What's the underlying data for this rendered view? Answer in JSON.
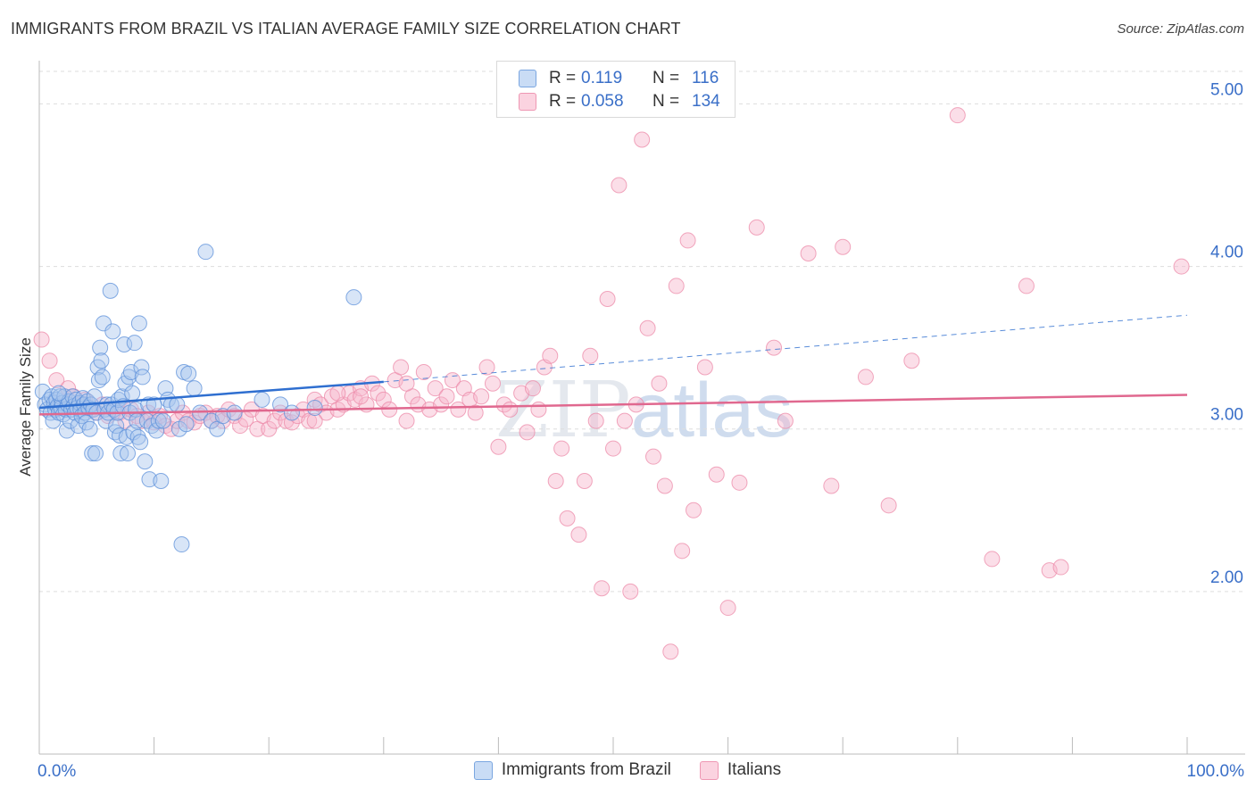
{
  "title": "IMMIGRANTS FROM BRAZIL VS ITALIAN AVERAGE FAMILY SIZE CORRELATION CHART",
  "source": "Source: ZipAtlas.com",
  "watermark": {
    "zip": "ZIP",
    "atlas": "atlas"
  },
  "legend": {
    "rows": [
      {
        "r_label": "R =",
        "r_value": "0.119",
        "n_label": "N =",
        "n_value": "116",
        "color": "#a8c6ee"
      },
      {
        "r_label": "R =",
        "r_value": "0.058",
        "n_label": "N =",
        "n_value": "134",
        "color": "#f7b6cb"
      }
    ]
  },
  "bottom_legend": [
    {
      "label": "Immigrants from Brazil",
      "color": "#a8c6ee"
    },
    {
      "label": "Italians",
      "color": "#f7b6cb"
    }
  ],
  "chart_data": {
    "type": "scatter",
    "title": "IMMIGRANTS FROM BRAZIL VS ITALIAN AVERAGE FAMILY SIZE CORRELATION CHART",
    "xlabel": "",
    "ylabel": "Average Family Size",
    "xlim": [
      0,
      100
    ],
    "ylim": [
      1.0,
      5.2
    ],
    "x_tick_labels": [
      "0.0%",
      "100.0%"
    ],
    "y_ticks": [
      2.0,
      3.0,
      4.0,
      5.0
    ],
    "y_tick_labels": [
      "2.00",
      "3.00",
      "4.00",
      "5.00"
    ],
    "grid": "horizontal dashed",
    "legend_position": "top-center",
    "series": [
      {
        "name": "Immigrants from Brazil",
        "color": "#5b8fd9",
        "fill": "#a8c6ee",
        "trend": {
          "x": [
            0,
            30
          ],
          "y": [
            3.13,
            3.29
          ],
          "dashed_to": [
            100,
            3.7
          ],
          "color": "#2f6fd0"
        },
        "points": [
          [
            0.3,
            3.23
          ],
          [
            0.5,
            3.15
          ],
          [
            0.7,
            3.12
          ],
          [
            0.9,
            3.18
          ],
          [
            1.0,
            3.1
          ],
          [
            1.1,
            3.2
          ],
          [
            1.2,
            3.05
          ],
          [
            1.3,
            3.16
          ],
          [
            1.4,
            3.12
          ],
          [
            1.5,
            3.18
          ],
          [
            1.6,
            3.14
          ],
          [
            1.7,
            3.1
          ],
          [
            1.8,
            3.2
          ],
          [
            1.9,
            3.13
          ],
          [
            2.0,
            3.16
          ],
          [
            2.1,
            3.09
          ],
          [
            2.2,
            3.2
          ],
          [
            2.3,
            3.12
          ],
          [
            2.4,
            2.99
          ],
          [
            2.5,
            3.15
          ],
          [
            2.6,
            3.17
          ],
          [
            2.7,
            3.05
          ],
          [
            2.8,
            3.12
          ],
          [
            2.9,
            3.2
          ],
          [
            3.0,
            3.14
          ],
          [
            3.1,
            3.1
          ],
          [
            3.2,
            3.18
          ],
          [
            3.3,
            3.13
          ],
          [
            3.4,
            3.02
          ],
          [
            3.5,
            3.16
          ],
          [
            3.6,
            3.12
          ],
          [
            3.7,
            3.08
          ],
          [
            3.8,
            3.19
          ],
          [
            3.9,
            3.15
          ],
          [
            4.0,
            3.1
          ],
          [
            4.1,
            3.04
          ],
          [
            4.2,
            3.17
          ],
          [
            4.3,
            3.13
          ],
          [
            4.4,
            3.0
          ],
          [
            4.5,
            3.15
          ],
          [
            4.6,
            2.85
          ],
          [
            4.7,
            3.12
          ],
          [
            4.8,
            3.2
          ],
          [
            4.9,
            2.85
          ],
          [
            5.0,
            3.1
          ],
          [
            5.1,
            3.38
          ],
          [
            5.2,
            3.3
          ],
          [
            5.3,
            3.5
          ],
          [
            5.4,
            3.42
          ],
          [
            5.5,
            3.32
          ],
          [
            5.6,
            3.65
          ],
          [
            5.7,
            3.12
          ],
          [
            5.8,
            3.05
          ],
          [
            5.9,
            3.15
          ],
          [
            6.0,
            3.1
          ],
          [
            6.2,
            3.85
          ],
          [
            6.3,
            3.15
          ],
          [
            6.4,
            3.6
          ],
          [
            6.5,
            3.12
          ],
          [
            6.6,
            2.98
          ],
          [
            6.7,
            3.02
          ],
          [
            6.8,
            3.1
          ],
          [
            6.9,
            3.18
          ],
          [
            7.0,
            2.96
          ],
          [
            7.1,
            2.85
          ],
          [
            7.2,
            3.2
          ],
          [
            7.3,
            3.14
          ],
          [
            7.4,
            3.52
          ],
          [
            7.5,
            3.28
          ],
          [
            7.6,
            2.95
          ],
          [
            7.7,
            2.85
          ],
          [
            7.8,
            3.32
          ],
          [
            7.9,
            3.1
          ],
          [
            8.0,
            3.35
          ],
          [
            8.1,
            3.22
          ],
          [
            8.2,
            2.98
          ],
          [
            8.3,
            3.53
          ],
          [
            8.4,
            3.12
          ],
          [
            8.5,
            3.05
          ],
          [
            8.6,
            2.95
          ],
          [
            8.7,
            3.65
          ],
          [
            8.8,
            2.92
          ],
          [
            8.9,
            3.38
          ],
          [
            9.0,
            3.32
          ],
          [
            9.2,
            2.8
          ],
          [
            9.4,
            3.05
          ],
          [
            9.5,
            3.15
          ],
          [
            9.6,
            2.69
          ],
          [
            9.8,
            3.02
          ],
          [
            10.0,
            3.15
          ],
          [
            10.2,
            2.99
          ],
          [
            10.4,
            3.05
          ],
          [
            10.6,
            2.68
          ],
          [
            10.8,
            3.05
          ],
          [
            11.0,
            3.25
          ],
          [
            11.2,
            3.18
          ],
          [
            11.5,
            3.15
          ],
          [
            12.0,
            3.15
          ],
          [
            12.2,
            3.0
          ],
          [
            12.4,
            2.29
          ],
          [
            12.6,
            3.35
          ],
          [
            12.8,
            3.03
          ],
          [
            13.0,
            3.34
          ],
          [
            13.5,
            3.25
          ],
          [
            14.0,
            3.1
          ],
          [
            14.5,
            4.09
          ],
          [
            15.0,
            3.05
          ],
          [
            15.5,
            3.0
          ],
          [
            16.0,
            3.08
          ],
          [
            17.0,
            3.1
          ],
          [
            19.4,
            3.18
          ],
          [
            21.0,
            3.15
          ],
          [
            22.0,
            3.1
          ],
          [
            24.0,
            3.13
          ],
          [
            27.4,
            3.81
          ],
          [
            1.7,
            3.22
          ]
        ]
      },
      {
        "name": "Italians",
        "color": "#ec8aa8",
        "fill": "#f7b6cb",
        "trend": {
          "x": [
            0,
            100
          ],
          "y": [
            3.09,
            3.21
          ],
          "color": "#e0688f"
        },
        "points": [
          [
            0.2,
            3.55
          ],
          [
            0.9,
            3.42
          ],
          [
            1.5,
            3.3
          ],
          [
            2.5,
            3.25
          ],
          [
            3.0,
            3.2
          ],
          [
            3.5,
            3.15
          ],
          [
            4.0,
            3.18
          ],
          [
            4.5,
            3.12
          ],
          [
            5.0,
            3.1
          ],
          [
            5.5,
            3.15
          ],
          [
            6.0,
            3.08
          ],
          [
            6.5,
            3.12
          ],
          [
            7.0,
            3.1
          ],
          [
            7.5,
            3.05
          ],
          [
            8.0,
            3.12
          ],
          [
            8.5,
            3.08
          ],
          [
            9.0,
            3.05
          ],
          [
            9.5,
            3.1
          ],
          [
            10.0,
            3.04
          ],
          [
            10.5,
            3.08
          ],
          [
            11.0,
            3.02
          ],
          [
            11.5,
            3.0
          ],
          [
            12.0,
            3.05
          ],
          [
            12.5,
            3.1
          ],
          [
            13.0,
            3.05
          ],
          [
            13.5,
            3.04
          ],
          [
            14.0,
            3.08
          ],
          [
            14.5,
            3.1
          ],
          [
            15.0,
            3.05
          ],
          [
            15.5,
            3.08
          ],
          [
            16.0,
            3.05
          ],
          [
            16.5,
            3.12
          ],
          [
            17.0,
            3.08
          ],
          [
            17.5,
            3.02
          ],
          [
            18.0,
            3.06
          ],
          [
            18.5,
            3.12
          ],
          [
            19.0,
            3.0
          ],
          [
            19.5,
            3.08
          ],
          [
            20.0,
            3.0
          ],
          [
            20.5,
            3.05
          ],
          [
            21.0,
            3.1
          ],
          [
            21.5,
            3.05
          ],
          [
            22.0,
            3.04
          ],
          [
            22.5,
            3.08
          ],
          [
            23.0,
            3.12
          ],
          [
            23.5,
            3.05
          ],
          [
            24.0,
            3.18
          ],
          [
            24.5,
            3.15
          ],
          [
            25.0,
            3.1
          ],
          [
            25.5,
            3.2
          ],
          [
            26.0,
            3.12
          ],
          [
            26.5,
            3.15
          ],
          [
            27.0,
            3.22
          ],
          [
            27.5,
            3.18
          ],
          [
            28.0,
            3.25
          ],
          [
            28.5,
            3.15
          ],
          [
            29.0,
            3.28
          ],
          [
            29.5,
            3.22
          ],
          [
            30.0,
            3.18
          ],
          [
            30.5,
            3.12
          ],
          [
            31.0,
            3.3
          ],
          [
            31.5,
            3.38
          ],
          [
            32.0,
            3.05
          ],
          [
            32.5,
            3.2
          ],
          [
            33.0,
            3.15
          ],
          [
            33.5,
            3.35
          ],
          [
            34.0,
            3.12
          ],
          [
            34.5,
            3.25
          ],
          [
            35.0,
            3.15
          ],
          [
            35.5,
            3.2
          ],
          [
            36.0,
            3.3
          ],
          [
            36.5,
            3.12
          ],
          [
            37.0,
            3.25
          ],
          [
            37.5,
            3.18
          ],
          [
            38.0,
            3.1
          ],
          [
            38.5,
            3.2
          ],
          [
            39.0,
            3.38
          ],
          [
            39.5,
            3.28
          ],
          [
            40.0,
            2.89
          ],
          [
            40.5,
            3.15
          ],
          [
            41.0,
            3.12
          ],
          [
            42.0,
            3.22
          ],
          [
            42.5,
            2.98
          ],
          [
            43.0,
            3.25
          ],
          [
            43.5,
            3.12
          ],
          [
            44.0,
            3.38
          ],
          [
            44.5,
            3.45
          ],
          [
            45.0,
            2.68
          ],
          [
            46.0,
            2.45
          ],
          [
            47.0,
            2.35
          ],
          [
            47.5,
            2.68
          ],
          [
            48.0,
            3.45
          ],
          [
            48.5,
            3.05
          ],
          [
            49.0,
            2.02
          ],
          [
            49.5,
            3.8
          ],
          [
            50.0,
            2.88
          ],
          [
            50.5,
            4.5
          ],
          [
            51.0,
            3.05
          ],
          [
            51.5,
            2.0
          ],
          [
            52.0,
            3.15
          ],
          [
            52.5,
            4.78
          ],
          [
            53.0,
            3.62
          ],
          [
            53.5,
            2.83
          ],
          [
            54.0,
            3.28
          ],
          [
            54.5,
            2.65
          ],
          [
            55.0,
            1.63
          ],
          [
            55.5,
            3.88
          ],
          [
            56.0,
            2.25
          ],
          [
            56.5,
            4.16
          ],
          [
            57.0,
            2.5
          ],
          [
            58.0,
            3.38
          ],
          [
            59.0,
            2.72
          ],
          [
            60.0,
            1.9
          ],
          [
            61.0,
            2.67
          ],
          [
            62.5,
            4.24
          ],
          [
            64.0,
            3.5
          ],
          [
            65.0,
            3.05
          ],
          [
            67.0,
            4.08
          ],
          [
            69.0,
            2.65
          ],
          [
            70.0,
            4.12
          ],
          [
            72.0,
            3.32
          ],
          [
            74.0,
            2.53
          ],
          [
            76.0,
            3.42
          ],
          [
            80.0,
            4.93
          ],
          [
            83.0,
            2.2
          ],
          [
            86.0,
            3.88
          ],
          [
            88.0,
            2.13
          ],
          [
            89.0,
            2.15
          ],
          [
            99.5,
            4.0
          ],
          [
            45.5,
            2.88
          ],
          [
            32.0,
            3.28
          ],
          [
            28.0,
            3.2
          ],
          [
            26.0,
            3.22
          ],
          [
            24.0,
            3.05
          ]
        ]
      }
    ]
  }
}
